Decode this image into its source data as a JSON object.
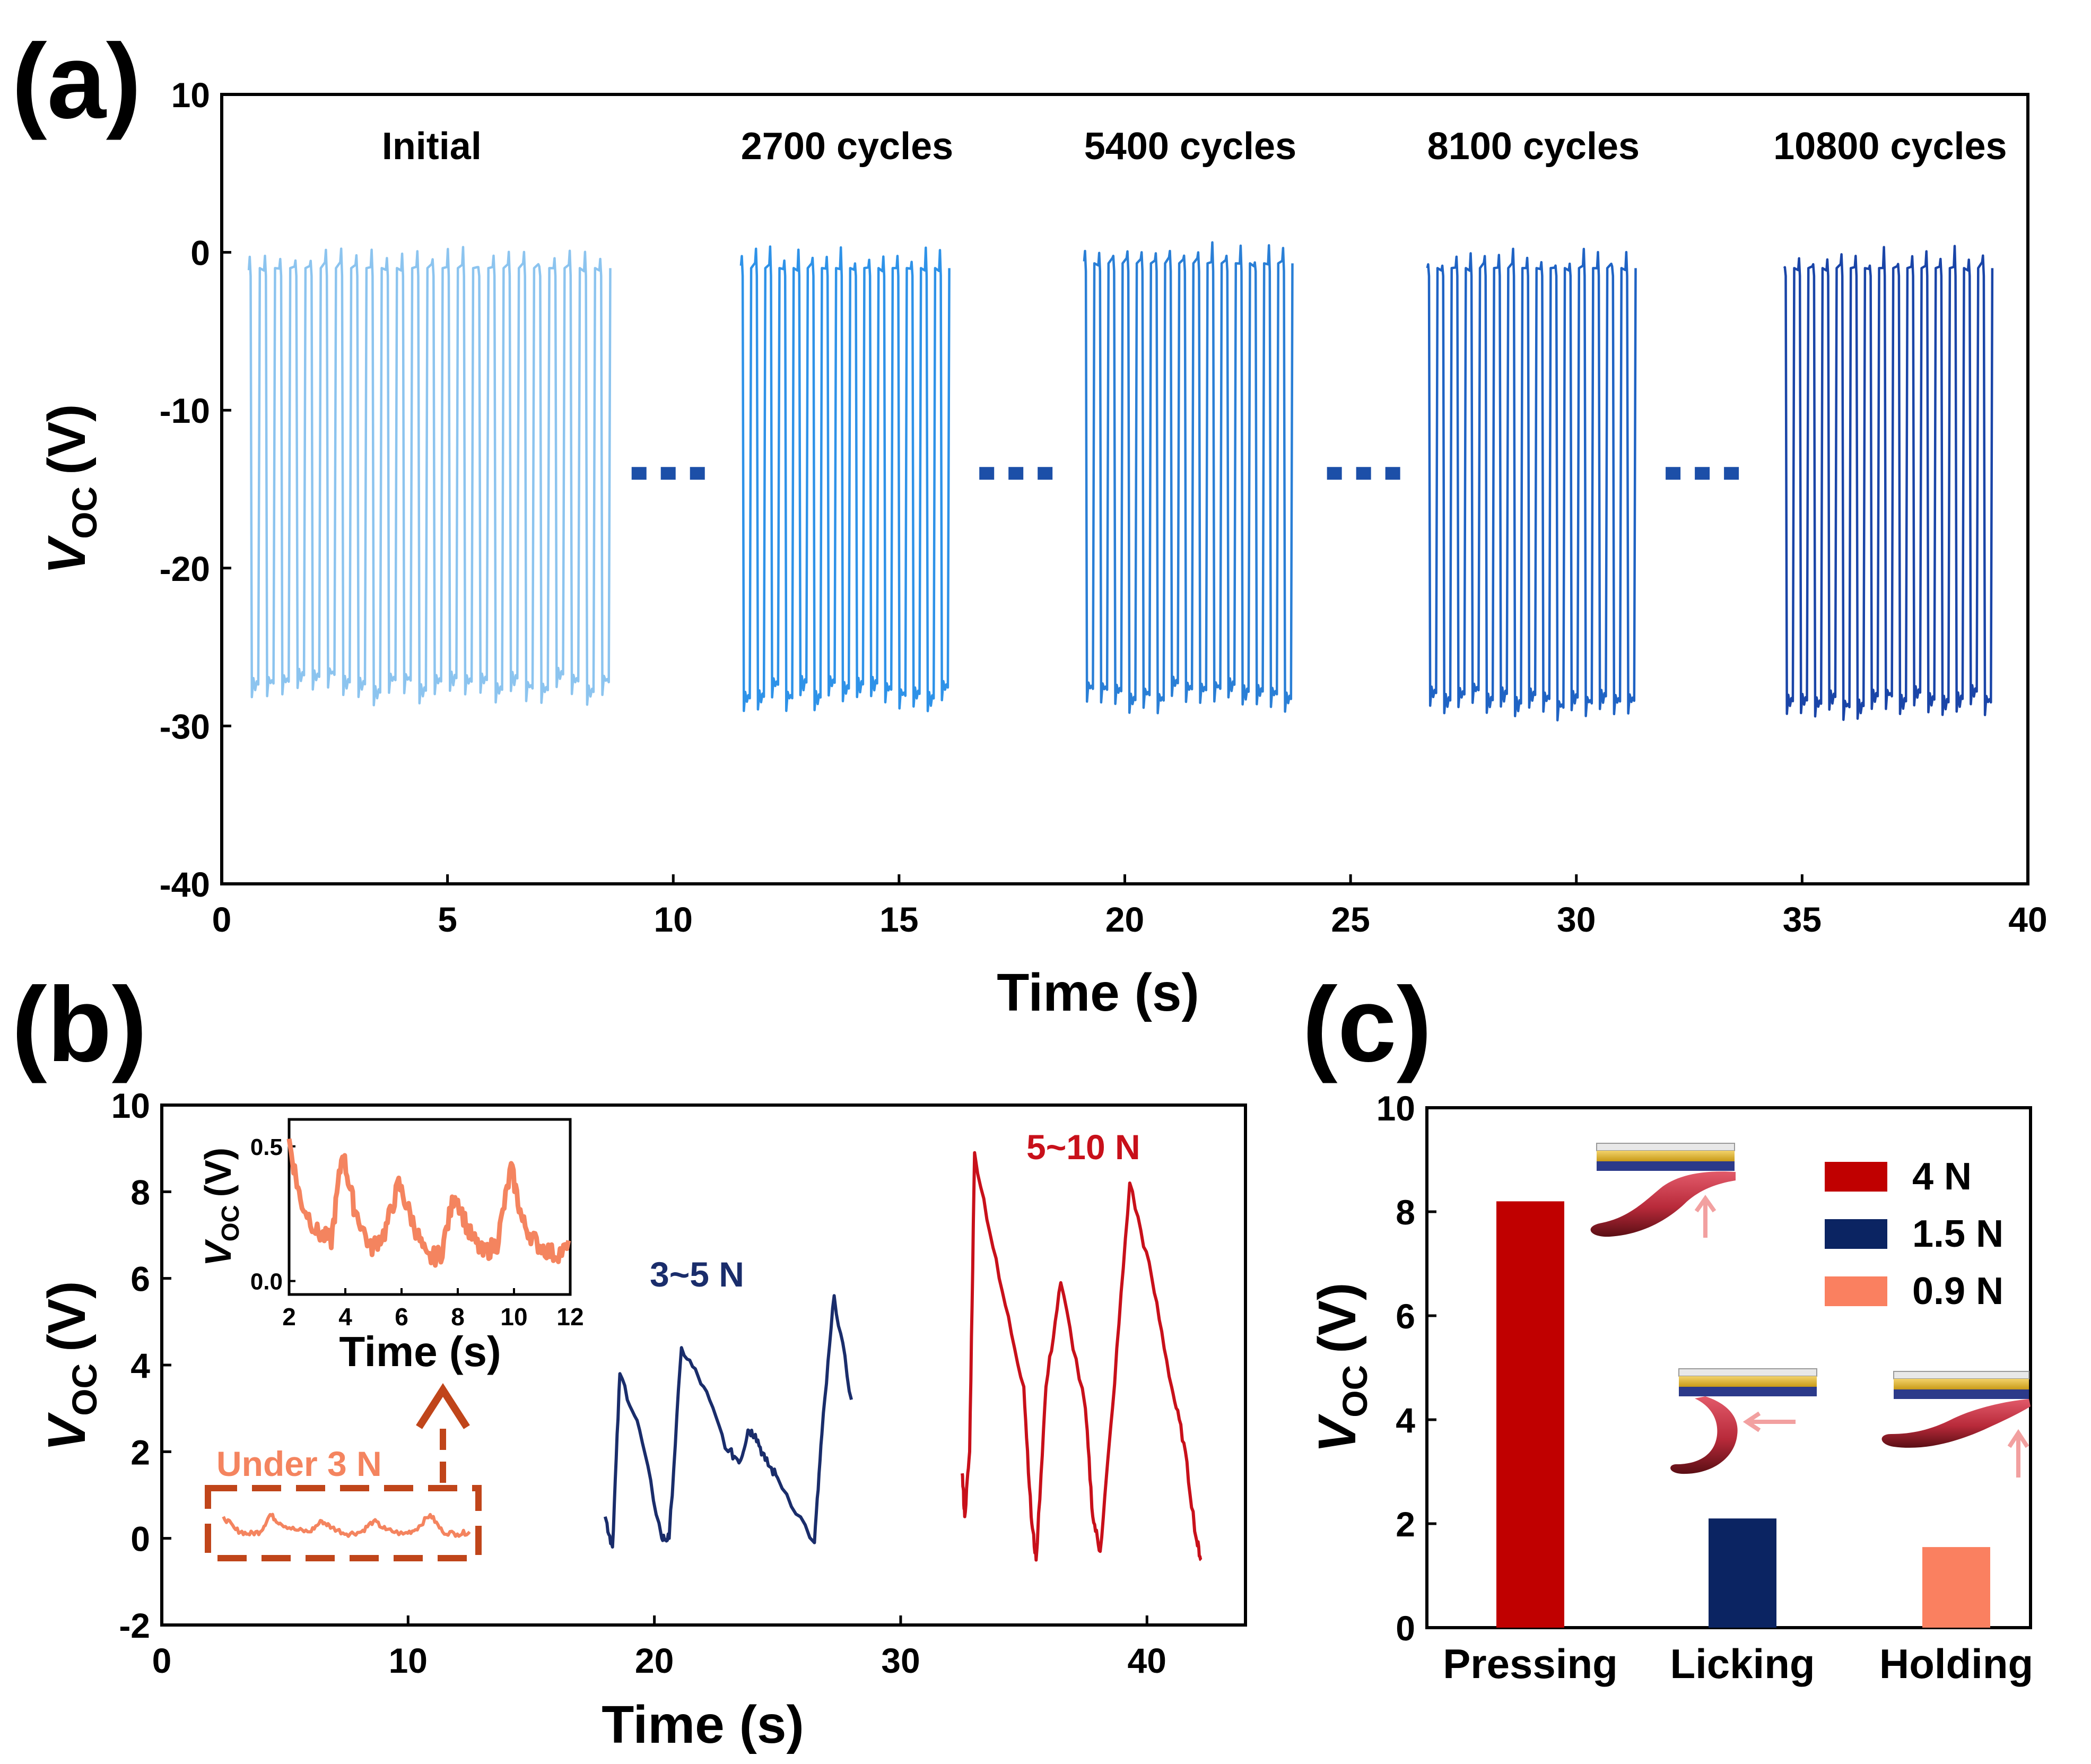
{
  "colors": {
    "initial": "#8cc4ef",
    "c2700": "#2e92e8",
    "c5400": "#2a7fd6",
    "c8100": "#1f63c4",
    "c10800": "#1a45a8",
    "dots": "#1c4fa8",
    "under3": "#f4845f",
    "under3_box": "#c0451a",
    "mid": "#1a2d6b",
    "high": "#c8101a",
    "bar_4n": "#c00000",
    "bar_15n": "#0b2462",
    "bar_09n": "#fa8060"
  },
  "chart_data": [
    {
      "panel": "(a)",
      "type": "line",
      "xlabel": "Time (s)",
      "ylabel_main": "V",
      "ylabel_sub": "OC",
      "ylabel_unit": "(V)",
      "xlim": [
        0,
        40
      ],
      "ylim": [
        -40,
        10
      ],
      "xticks": [
        0,
        5,
        10,
        15,
        20,
        25,
        30,
        35,
        40
      ],
      "yticks": [
        10,
        0,
        -10,
        -20,
        -30,
        -40
      ],
      "continuation_marker": "...",
      "series": [
        {
          "name": "Initial",
          "x_start": 0.6,
          "x_end": 8.7,
          "cycles": 24,
          "v_high": 0,
          "v_low": -28,
          "color_key": "initial"
        },
        {
          "name": "2700 cycles",
          "x_start": 11.5,
          "x_end": 16.2,
          "cycles": 15,
          "v_high": 0,
          "v_low": -28.5,
          "color_key": "c2700"
        },
        {
          "name": "5400 cycles",
          "x_start": 19.1,
          "x_end": 23.8,
          "cycles": 15,
          "v_high": 0.3,
          "v_low": -28.5,
          "color_key": "c5400"
        },
        {
          "name": "8100 cycles",
          "x_start": 26.7,
          "x_end": 31.4,
          "cycles": 15,
          "v_high": 0,
          "v_low": -29,
          "color_key": "c8100"
        },
        {
          "name": "10800 cycles",
          "x_start": 34.6,
          "x_end": 39.3,
          "cycles": 15,
          "v_high": 0,
          "v_low": -29,
          "color_key": "c10800"
        }
      ]
    },
    {
      "panel": "(b)",
      "type": "line",
      "xlabel": "Time (s)",
      "ylabel_main": "V",
      "ylabel_sub": "OC",
      "ylabel_unit": "(V)",
      "xlim": [
        0,
        44
      ],
      "ylim": [
        -2,
        10
      ],
      "xticks": [
        0,
        10,
        20,
        30,
        40
      ],
      "yticks": [
        10,
        8,
        6,
        4,
        2,
        0,
        -2
      ],
      "series": [
        {
          "name": "Under 3 N",
          "color_key": "under3",
          "x": [
            2.5,
            3.0,
            3.5,
            4.0,
            4.4,
            4.8,
            5.4,
            6.0,
            6.5,
            6.9,
            7.5,
            8.1,
            8.6,
            9.1,
            9.8,
            10.3,
            10.9,
            11.4,
            12.0,
            12.5
          ],
          "y": [
            0.5,
            0.2,
            0.1,
            0.15,
            0.55,
            0.35,
            0.2,
            0.15,
            0.4,
            0.25,
            0.1,
            0.15,
            0.4,
            0.2,
            0.1,
            0.2,
            0.55,
            0.15,
            0.1,
            0.15
          ]
        },
        {
          "name": "3~5 N",
          "color_key": "mid",
          "x": [
            18.0,
            18.3,
            18.6,
            19.4,
            20.3,
            20.6,
            21.1,
            22.0,
            23.0,
            23.5,
            23.8,
            24.1,
            24.5,
            25.0,
            26.5,
            26.8,
            27.3,
            28.0
          ],
          "y": [
            0.5,
            -0.2,
            3.8,
            2.5,
            0.0,
            0.0,
            4.4,
            3.5,
            2.0,
            1.8,
            2.5,
            2.4,
            1.8,
            1.4,
            -0.1,
            2.4,
            5.6,
            3.2
          ]
        },
        {
          "name": "5~10 N",
          "color_key": "high",
          "x": [
            32.5,
            32.6,
            32.8,
            33.0,
            34.0,
            35.0,
            35.3,
            35.5,
            35.9,
            36.5,
            37.5,
            37.8,
            38.1,
            38.6,
            39.3,
            40.2,
            41.0,
            41.5,
            42.0,
            42.2
          ],
          "y": [
            1.5,
            0.5,
            2.0,
            8.9,
            6.0,
            3.5,
            0.5,
            -0.5,
            3.5,
            5.9,
            3.0,
            0.5,
            -0.3,
            3.0,
            8.2,
            6.0,
            3.5,
            2.2,
            0.0,
            -0.5
          ]
        }
      ],
      "annotations": {
        "under3_label": "Under 3 N",
        "mid_label": "3~5 N",
        "high_label": "5~10 N"
      },
      "inset": {
        "type": "line",
        "xlabel": "Time (s)",
        "ylabel_main": "V",
        "ylabel_sub": "OC",
        "ylabel_unit": "(V)",
        "xlim": [
          2,
          12
        ],
        "ylim": [
          -0.05,
          0.6
        ],
        "xticks": [
          2,
          4,
          6,
          8,
          10,
          12
        ],
        "yticks": [
          0.5,
          0.0
        ],
        "ytick_labels": [
          "0.5",
          "0.0"
        ],
        "x": [
          2.0,
          2.4,
          3.0,
          3.5,
          3.9,
          4.3,
          4.9,
          5.4,
          5.9,
          6.4,
          6.9,
          7.4,
          7.9,
          8.4,
          8.9,
          9.4,
          9.9,
          10.3,
          10.8,
          11.4,
          12.0
        ],
        "y": [
          0.52,
          0.3,
          0.18,
          0.15,
          0.48,
          0.28,
          0.12,
          0.18,
          0.36,
          0.22,
          0.08,
          0.1,
          0.33,
          0.18,
          0.1,
          0.14,
          0.42,
          0.22,
          0.14,
          0.1,
          0.12
        ]
      }
    },
    {
      "panel": "(c)",
      "type": "bar",
      "ylabel_main": "V",
      "ylabel_sub": "OC",
      "ylabel_unit": "(V)",
      "ylim": [
        0,
        10
      ],
      "yticks": [
        10,
        8,
        6,
        4,
        2,
        0
      ],
      "categories": [
        "Pressing",
        "Licking",
        "Holding"
      ],
      "values": [
        8.2,
        2.1,
        1.55
      ],
      "legend": [
        {
          "label": "4 N",
          "color_key": "bar_4n"
        },
        {
          "label": "1.5 N",
          "color_key": "bar_15n"
        },
        {
          "label": "0.9 N",
          "color_key": "bar_09n"
        }
      ]
    }
  ]
}
